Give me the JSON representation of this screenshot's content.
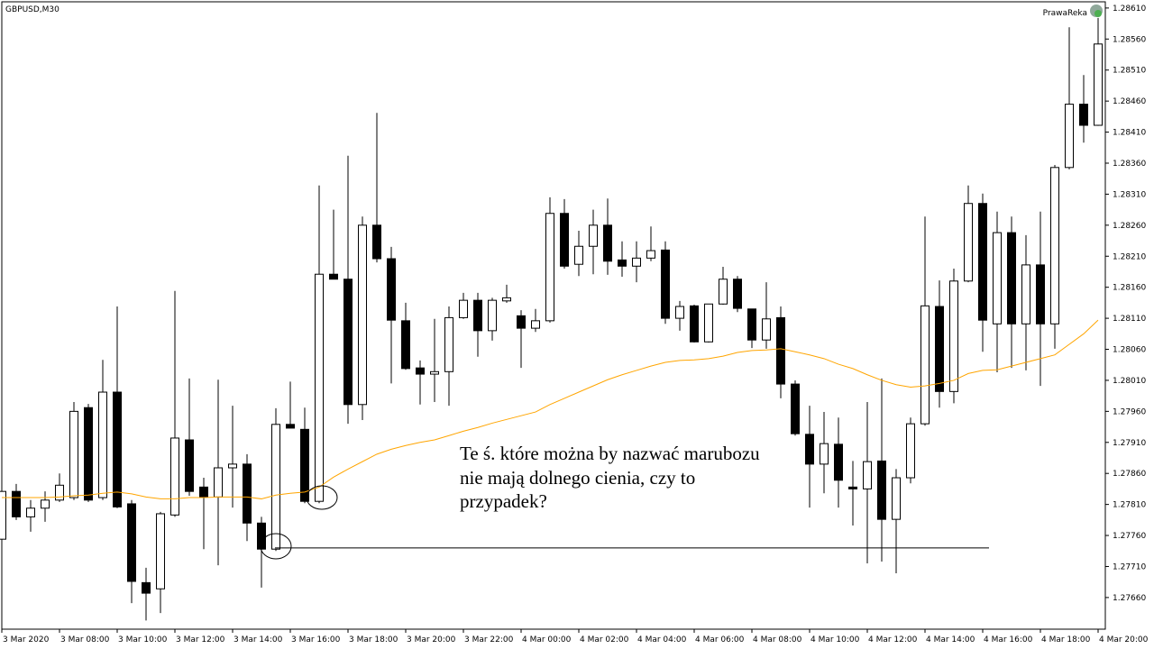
{
  "chart_data": {
    "type": "candlestick",
    "title": "GBPUSD,M30",
    "watermark": "PrawaReka",
    "annotation": [
      "Te ś. które można by nazwać marubozu",
      "nie mają dolnego cienia, czy to",
      "przypadek?"
    ],
    "up_color": "#ffffff",
    "down_color": "#000000",
    "hline": 1.2774,
    "categories": [
      "3 Mar 2020",
      null,
      null,
      null,
      "3 Mar 08:00",
      null,
      null,
      null,
      "3 Mar 10:00",
      null,
      null,
      null,
      "3 Mar 12:00",
      null,
      null,
      null,
      "3 Mar 14:00",
      null,
      null,
      null,
      "3 Mar 16:00",
      null,
      null,
      null,
      "3 Mar 18:00",
      null,
      null,
      null,
      "3 Mar 20:00",
      null,
      null,
      null,
      "3 Mar 22:00",
      null,
      null,
      null,
      "4 Mar 00:00",
      null,
      null,
      null,
      "4 Mar 02:00",
      null,
      null,
      null,
      "4 Mar 04:00",
      null,
      null,
      null,
      "4 Mar 06:00",
      null,
      null,
      null,
      "4 Mar 08:00",
      null,
      null,
      null,
      "4 Mar 10:00",
      null,
      null,
      null,
      "4 Mar 12:00",
      null,
      null,
      null,
      "4 Mar 14:00",
      null,
      null,
      null,
      "4 Mar 16:00",
      null,
      null,
      null,
      "4 Mar 18:00",
      null,
      null,
      null,
      "4 Mar 20:00"
    ],
    "open": [
      1.27754,
      1.27831,
      1.2779,
      1.27804,
      1.27817,
      1.27821,
      1.27966,
      1.27821,
      1.27991,
      1.27811,
      1.27684,
      1.27674,
      1.27793,
      1.27914,
      1.27838,
      1.27822,
      1.27869,
      1.27875,
      1.2778,
      1.27738,
      1.27939,
      1.27931,
      1.27815,
      1.28181,
      1.28173,
      1.27971,
      1.2826,
      1.28206,
      1.28106,
      1.2803,
      1.2802,
      1.28024,
      1.28111,
      1.28139,
      1.2809,
      1.28138,
      1.28114,
      1.28094,
      1.28106,
      1.28279,
      1.28197,
      1.28226,
      1.2826,
      1.28204,
      1.28194,
      1.28207,
      1.2822,
      1.2811,
      1.2813,
      1.28072,
      1.28133,
      1.28173,
      1.28125,
      1.28075,
      1.28111,
      1.28004,
      1.27923,
      1.27875,
      1.27907,
      1.27838,
      1.27835,
      1.2788,
      1.27786,
      1.27853,
      1.2794,
      1.28129,
      1.27992,
      1.2817,
      1.28295,
      1.28101,
      1.28248,
      1.28101,
      1.28196,
      1.28101,
      1.28353,
      1.28455,
      1.28421
    ],
    "high": [
      1.27831,
      1.27843,
      1.27817,
      1.27831,
      1.2786,
      1.27975,
      1.27972,
      1.28043,
      1.28129,
      1.27817,
      1.27708,
      1.27798,
      1.28154,
      1.28013,
      1.27853,
      1.28011,
      1.27969,
      1.27891,
      1.2779,
      1.27965,
      1.28008,
      1.27966,
      1.28324,
      1.28285,
      1.28372,
      1.28274,
      1.28441,
      1.28225,
      1.28135,
      1.28042,
      1.28109,
      1.28129,
      1.28151,
      1.28151,
      1.28143,
      1.28164,
      1.28123,
      1.28125,
      1.28305,
      1.28302,
      1.28251,
      1.28285,
      1.28303,
      1.28234,
      1.28234,
      1.28258,
      1.28234,
      1.28138,
      1.28132,
      1.28133,
      1.28193,
      1.28178,
      1.28125,
      1.28168,
      1.28129,
      1.2801,
      1.27969,
      1.27959,
      1.2795,
      1.2788,
      1.27975,
      1.28013,
      1.27867,
      1.2795,
      1.28274,
      1.28171,
      1.2819,
      1.28324,
      1.28311,
      1.28282,
      1.28274,
      1.28244,
      1.28282,
      1.28357,
      1.28579,
      1.28502,
      1.28594
    ],
    "low": [
      1.27754,
      1.27785,
      1.27766,
      1.27782,
      1.27814,
      1.27817,
      1.27814,
      1.27817,
      1.27804,
      1.27651,
      1.27623,
      1.27635,
      1.2779,
      1.27824,
      1.27738,
      1.27712,
      1.27805,
      1.27751,
      1.27676,
      1.27735,
      1.27933,
      1.27812,
      1.27812,
      1.28173,
      1.2794,
      1.27946,
      1.282,
      1.28005,
      1.28027,
      1.27971,
      1.27975,
      1.27969,
      1.28109,
      1.28048,
      1.28074,
      1.28135,
      1.2803,
      1.28088,
      1.28103,
      1.2819,
      1.28178,
      1.28181,
      1.2818,
      1.28177,
      1.28168,
      1.28202,
      1.28101,
      1.2809,
      1.28071,
      1.28071,
      1.28132,
      1.2812,
      1.28062,
      1.28061,
      1.27981,
      1.27921,
      1.27805,
      1.27828,
      1.27805,
      1.27776,
      1.27715,
      1.27718,
      1.27699,
      1.27844,
      1.27937,
      1.27966,
      1.27973,
      1.28168,
      1.28056,
      1.28023,
      1.2803,
      1.28026,
      1.28001,
      1.28061,
      1.2835,
      1.28393,
      1.2842
    ],
    "close": [
      1.27831,
      1.2779,
      1.27804,
      1.27817,
      1.27841,
      1.2796,
      1.27817,
      1.27991,
      1.27806,
      1.27686,
      1.27667,
      1.27795,
      1.27917,
      1.27831,
      1.27822,
      1.27869,
      1.27875,
      1.2778,
      1.27738,
      1.27939,
      1.27933,
      1.27815,
      1.28181,
      1.28173,
      1.27971,
      1.2826,
      1.28206,
      1.28107,
      1.28029,
      1.2802,
      1.28024,
      1.28111,
      1.28139,
      1.2809,
      1.28139,
      1.28143,
      1.28094,
      1.28106,
      1.28279,
      1.28194,
      1.28226,
      1.2826,
      1.28202,
      1.28194,
      1.28207,
      1.28219,
      1.2811,
      1.28129,
      1.28072,
      1.28133,
      1.28173,
      1.28126,
      1.28075,
      1.28109,
      1.28004,
      1.27924,
      1.27875,
      1.27908,
      1.27849,
      1.27835,
      1.27879,
      1.27786,
      1.27853,
      1.2794,
      1.2813,
      1.27992,
      1.2817,
      1.28295,
      1.28107,
      1.28248,
      1.28101,
      1.28196,
      1.28101,
      1.28353,
      1.28455,
      1.28421,
      1.28552
    ],
    "ma": {
      "color": "#ffa500",
      "values": [
        1.27821,
        1.27821,
        1.27821,
        1.27821,
        1.27822,
        1.27824,
        1.27825,
        1.27828,
        1.2783,
        1.27827,
        1.27822,
        1.27819,
        1.27819,
        1.27821,
        1.27821,
        1.27822,
        1.27822,
        1.27822,
        1.27819,
        1.27825,
        1.27828,
        1.2783,
        1.27838,
        1.27854,
        1.27867,
        1.27879,
        1.27891,
        1.27899,
        1.27905,
        1.2791,
        1.27914,
        1.27921,
        1.27928,
        1.27934,
        1.27941,
        1.27947,
        1.27953,
        1.27959,
        1.27971,
        1.27981,
        1.27991,
        1.28001,
        1.28011,
        1.28019,
        1.28026,
        1.28033,
        1.28039,
        1.28042,
        1.28043,
        1.28045,
        1.28049,
        1.28055,
        1.28058,
        1.28059,
        1.28061,
        1.28056,
        1.28051,
        1.28045,
        1.28036,
        1.28029,
        1.28019,
        1.2801,
        1.28003,
        1.27999,
        1.28001,
        1.28005,
        1.2801,
        1.28021,
        1.28026,
        1.28027,
        1.28033,
        1.28039,
        1.28045,
        1.28051,
        1.28068,
        1.28085,
        1.28107
      ]
    },
    "ylim": [
      1.27609,
      1.2862
    ],
    "yticks": [
      {
        "value": 1.2861,
        "label": "1.28610"
      },
      {
        "value": 1.2856,
        "label": "1.28560"
      },
      {
        "value": 1.2851,
        "label": "1.28510"
      },
      {
        "value": 1.2846,
        "label": "1.28460"
      },
      {
        "value": 1.2841,
        "label": "1.28410"
      },
      {
        "value": 1.2836,
        "label": "1.28360"
      },
      {
        "value": 1.2831,
        "label": "1.28310"
      },
      {
        "value": 1.2826,
        "label": "1.28260"
      },
      {
        "value": 1.2821,
        "label": "1.28210"
      },
      {
        "value": 1.2816,
        "label": "1.28160"
      },
      {
        "value": 1.2811,
        "label": "1.28110"
      },
      {
        "value": 1.2806,
        "label": "1.28060"
      },
      {
        "value": 1.2801,
        "label": "1.28010"
      },
      {
        "value": 1.2796,
        "label": "1.27960"
      },
      {
        "value": 1.2791,
        "label": "1.27910"
      },
      {
        "value": 1.2786,
        "label": "1.27860"
      },
      {
        "value": 1.2781,
        "label": "1.27810"
      },
      {
        "value": 1.2776,
        "label": "1.27760"
      },
      {
        "value": 1.2771,
        "label": "1.27710"
      },
      {
        "value": 1.2766,
        "label": "1.27660"
      }
    ]
  }
}
